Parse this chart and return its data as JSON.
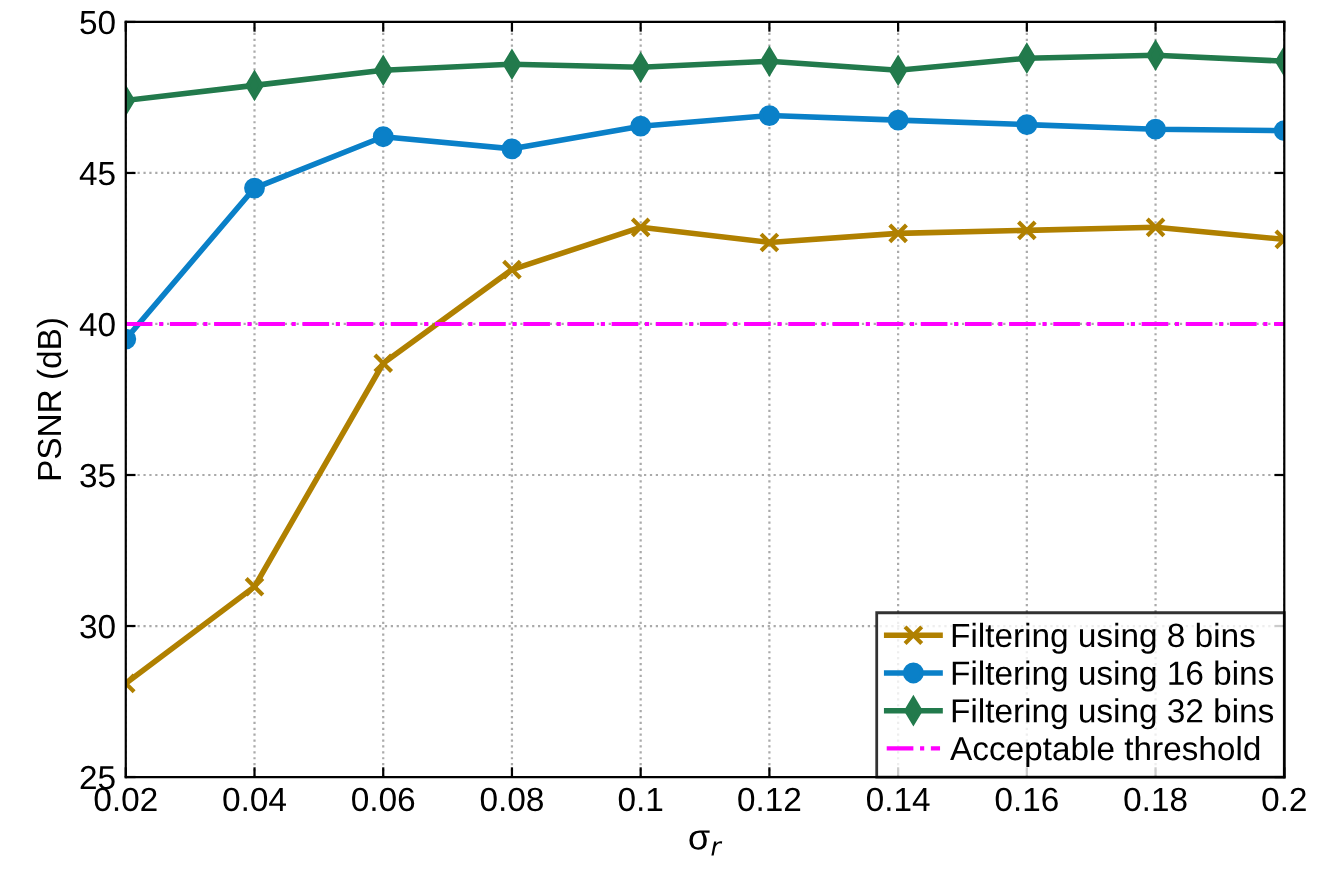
{
  "chart_data": {
    "type": "line",
    "xlabel": "σ$_{r}$",
    "ylabel": "PSNR (dB)",
    "x": [
      0.02,
      0.04,
      0.06,
      0.08,
      0.1,
      0.12,
      0.14,
      0.16,
      0.18,
      0.2
    ],
    "series": [
      {
        "name": "Filtering using 8 bins",
        "color": "#b08000",
        "marker": "cross",
        "values": [
          28.1,
          31.3,
          38.7,
          41.8,
          43.2,
          42.7,
          43.0,
          43.1,
          43.2,
          42.8
        ]
      },
      {
        "name": "Filtering using 16 bins",
        "color": "#0a80c8",
        "marker": "circle",
        "values": [
          39.5,
          44.5,
          46.2,
          45.8,
          46.55,
          46.9,
          46.75,
          46.6,
          46.45,
          46.4
        ]
      },
      {
        "name": "Filtering using 32 bins",
        "color": "#227a4c",
        "marker": "diamond",
        "values": [
          47.4,
          47.9,
          48.4,
          48.6,
          48.5,
          48.7,
          48.4,
          48.8,
          48.9,
          48.7
        ]
      }
    ],
    "ref_lines": [
      {
        "axis": "y",
        "value": 40,
        "label": "Acceptable threshold",
        "color": "#ff00ff",
        "line_style": "dashdot"
      }
    ],
    "xlim": [
      0.02,
      0.2
    ],
    "xticks": [
      0.02,
      0.04,
      0.06,
      0.08,
      0.1,
      0.12,
      0.14,
      0.16,
      0.18,
      0.2
    ],
    "ylim": [
      25,
      50
    ],
    "yticks": [
      25,
      30,
      35,
      40,
      45,
      50
    ],
    "grid": true,
    "legend": "bottom right",
    "line_style": "solid"
  }
}
